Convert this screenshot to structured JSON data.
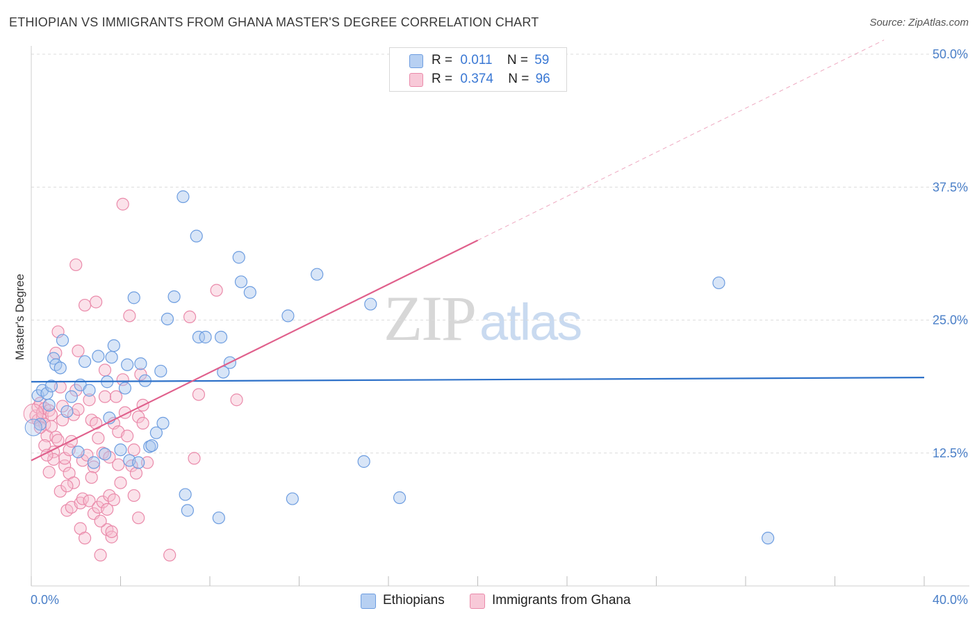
{
  "title": "ETHIOPIAN VS IMMIGRANTS FROM GHANA MASTER'S DEGREE CORRELATION CHART",
  "source": "Source: ZipAtlas.com",
  "watermark": {
    "part1": "ZIP",
    "part2": "atlas"
  },
  "legend": {
    "rows": [
      {
        "r_label": "R =",
        "r_value": "0.011",
        "n_label": "N =",
        "n_value": "59"
      },
      {
        "r_label": "R =",
        "r_value": "0.374",
        "n_label": "N =",
        "n_value": "96"
      }
    ]
  },
  "bottom_legend": {
    "series1": "Ethiopians",
    "series2": "Immigrants from Ghana"
  },
  "colors": {
    "blue_fill": "#a9c6ee",
    "blue_stroke": "#6d9de0",
    "blue_line": "#2f72c9",
    "pink_fill": "#f6bfd0",
    "pink_stroke": "#ea8aaa",
    "pink_line": "#e0608c",
    "grid": "#dcdcdc",
    "tick_text": "#4a7fc8"
  },
  "chart_data": {
    "type": "scatter",
    "title": "ETHIOPIAN VS IMMIGRANTS FROM GHANA MASTER'S DEGREE CORRELATION CHART",
    "xlabel": "",
    "ylabel": "Master's Degree",
    "xlim": [
      0,
      40
    ],
    "ylim": [
      0,
      50
    ],
    "x_tick_labels": [
      "0.0%",
      "40.0%"
    ],
    "y_ticks": [
      12.5,
      25.0,
      37.5,
      50.0
    ],
    "y_tick_labels": [
      "12.5%",
      "25.0%",
      "37.5%",
      "50.0%"
    ],
    "grid": true,
    "legend_position": "top-center",
    "series": [
      {
        "name": "Ethiopians",
        "r": 0.011,
        "n": 59,
        "trend": {
          "x0": 0,
          "y0": 19.2,
          "x1": 40,
          "y1": 19.6,
          "dashed_until": null
        },
        "points": [
          [
            0.3,
            17.9
          ],
          [
            0.5,
            18.4
          ],
          [
            0.7,
            18.1
          ],
          [
            0.9,
            18.8
          ],
          [
            1.0,
            21.4
          ],
          [
            1.1,
            20.8
          ],
          [
            1.4,
            23.1
          ],
          [
            1.6,
            16.4
          ],
          [
            1.8,
            17.8
          ],
          [
            2.1,
            12.6
          ],
          [
            2.2,
            18.9
          ],
          [
            2.4,
            21.1
          ],
          [
            2.6,
            18.4
          ],
          [
            2.8,
            11.6
          ],
          [
            3.0,
            21.6
          ],
          [
            3.3,
            12.4
          ],
          [
            3.4,
            19.2
          ],
          [
            3.5,
            15.8
          ],
          [
            3.6,
            21.5
          ],
          [
            3.7,
            22.6
          ],
          [
            4.0,
            12.8
          ],
          [
            4.2,
            18.6
          ],
          [
            4.3,
            20.8
          ],
          [
            4.4,
            11.8
          ],
          [
            4.6,
            27.1
          ],
          [
            4.8,
            11.6
          ],
          [
            4.9,
            20.9
          ],
          [
            5.1,
            19.3
          ],
          [
            5.3,
            13.1
          ],
          [
            5.4,
            13.2
          ],
          [
            5.6,
            14.4
          ],
          [
            5.8,
            20.2
          ],
          [
            5.9,
            15.3
          ],
          [
            6.1,
            25.1
          ],
          [
            6.4,
            27.2
          ],
          [
            6.8,
            36.6
          ],
          [
            6.9,
            8.6
          ],
          [
            7.0,
            7.1
          ],
          [
            7.4,
            32.9
          ],
          [
            7.5,
            23.4
          ],
          [
            7.8,
            23.4
          ],
          [
            8.4,
            6.4
          ],
          [
            8.5,
            23.4
          ],
          [
            8.6,
            20.1
          ],
          [
            8.9,
            21.0
          ],
          [
            9.3,
            30.9
          ],
          [
            9.4,
            28.6
          ],
          [
            9.8,
            27.6
          ],
          [
            11.5,
            25.4
          ],
          [
            11.7,
            8.2
          ],
          [
            12.8,
            29.3
          ],
          [
            15.2,
            26.5
          ],
          [
            14.9,
            11.7
          ],
          [
            16.5,
            8.3
          ],
          [
            30.8,
            28.5
          ],
          [
            33.0,
            4.5
          ],
          [
            0.4,
            15.2
          ],
          [
            0.8,
            17.0
          ],
          [
            1.3,
            20.5
          ]
        ]
      },
      {
        "name": "Immigrants from Ghana",
        "r": 0.374,
        "n": 96,
        "trend": {
          "x0": 0,
          "y0": 11.8,
          "x1": 20.0,
          "y1": 32.5,
          "dash_x1": 40,
          "dash_y1": 53.2
        },
        "points": [
          [
            0.2,
            16.0
          ],
          [
            0.3,
            16.8
          ],
          [
            0.3,
            15.6
          ],
          [
            0.4,
            17.2
          ],
          [
            0.5,
            15.9
          ],
          [
            0.5,
            16.3
          ],
          [
            0.6,
            16.7
          ],
          [
            0.6,
            15.2
          ],
          [
            0.7,
            14.1
          ],
          [
            0.8,
            16.5
          ],
          [
            0.8,
            10.7
          ],
          [
            0.9,
            15.0
          ],
          [
            0.9,
            16.1
          ],
          [
            1.0,
            12.6
          ],
          [
            1.0,
            11.9
          ],
          [
            1.1,
            14.0
          ],
          [
            1.1,
            21.9
          ],
          [
            1.2,
            23.9
          ],
          [
            1.2,
            13.7
          ],
          [
            1.3,
            8.9
          ],
          [
            1.4,
            15.6
          ],
          [
            1.4,
            16.9
          ],
          [
            1.5,
            11.3
          ],
          [
            1.5,
            12.0
          ],
          [
            1.6,
            7.1
          ],
          [
            1.7,
            10.6
          ],
          [
            1.7,
            12.8
          ],
          [
            1.8,
            13.6
          ],
          [
            1.8,
            7.4
          ],
          [
            1.9,
            9.7
          ],
          [
            1.9,
            16.1
          ],
          [
            2.0,
            30.2
          ],
          [
            2.0,
            18.4
          ],
          [
            2.1,
            22.1
          ],
          [
            2.2,
            7.8
          ],
          [
            2.2,
            5.4
          ],
          [
            2.3,
            11.8
          ],
          [
            2.3,
            8.2
          ],
          [
            2.4,
            4.5
          ],
          [
            2.4,
            26.4
          ],
          [
            2.5,
            12.3
          ],
          [
            2.6,
            17.5
          ],
          [
            2.6,
            8.0
          ],
          [
            2.7,
            15.6
          ],
          [
            2.8,
            11.2
          ],
          [
            2.8,
            6.8
          ],
          [
            2.9,
            15.3
          ],
          [
            2.9,
            26.7
          ],
          [
            3.0,
            13.9
          ],
          [
            3.0,
            7.4
          ],
          [
            3.1,
            2.9
          ],
          [
            3.2,
            7.9
          ],
          [
            3.2,
            12.5
          ],
          [
            3.3,
            17.8
          ],
          [
            3.3,
            20.3
          ],
          [
            3.4,
            7.2
          ],
          [
            3.4,
            5.3
          ],
          [
            3.5,
            8.5
          ],
          [
            3.5,
            12.1
          ],
          [
            3.6,
            4.6
          ],
          [
            3.6,
            5.1
          ],
          [
            3.7,
            15.3
          ],
          [
            3.7,
            8.1
          ],
          [
            3.8,
            17.8
          ],
          [
            3.9,
            11.4
          ],
          [
            3.9,
            14.5
          ],
          [
            4.0,
            9.7
          ],
          [
            4.1,
            35.9
          ],
          [
            4.1,
            19.4
          ],
          [
            4.2,
            16.3
          ],
          [
            4.3,
            14.1
          ],
          [
            4.4,
            25.4
          ],
          [
            4.5,
            11.3
          ],
          [
            4.6,
            8.5
          ],
          [
            4.7,
            10.6
          ],
          [
            4.8,
            15.9
          ],
          [
            4.8,
            6.4
          ],
          [
            4.9,
            19.9
          ],
          [
            5.0,
            17.0
          ],
          [
            5.0,
            15.3
          ],
          [
            5.2,
            11.6
          ],
          [
            6.2,
            2.9
          ],
          [
            7.1,
            25.3
          ],
          [
            7.3,
            12.0
          ],
          [
            7.5,
            18.0
          ],
          [
            8.3,
            27.8
          ],
          [
            9.2,
            17.5
          ],
          [
            0.4,
            14.9
          ],
          [
            0.6,
            13.2
          ],
          [
            0.7,
            12.3
          ],
          [
            1.3,
            18.7
          ],
          [
            1.6,
            9.4
          ],
          [
            2.1,
            16.6
          ],
          [
            2.7,
            10.2
          ],
          [
            3.1,
            6.1
          ],
          [
            4.6,
            12.8
          ]
        ]
      }
    ]
  }
}
